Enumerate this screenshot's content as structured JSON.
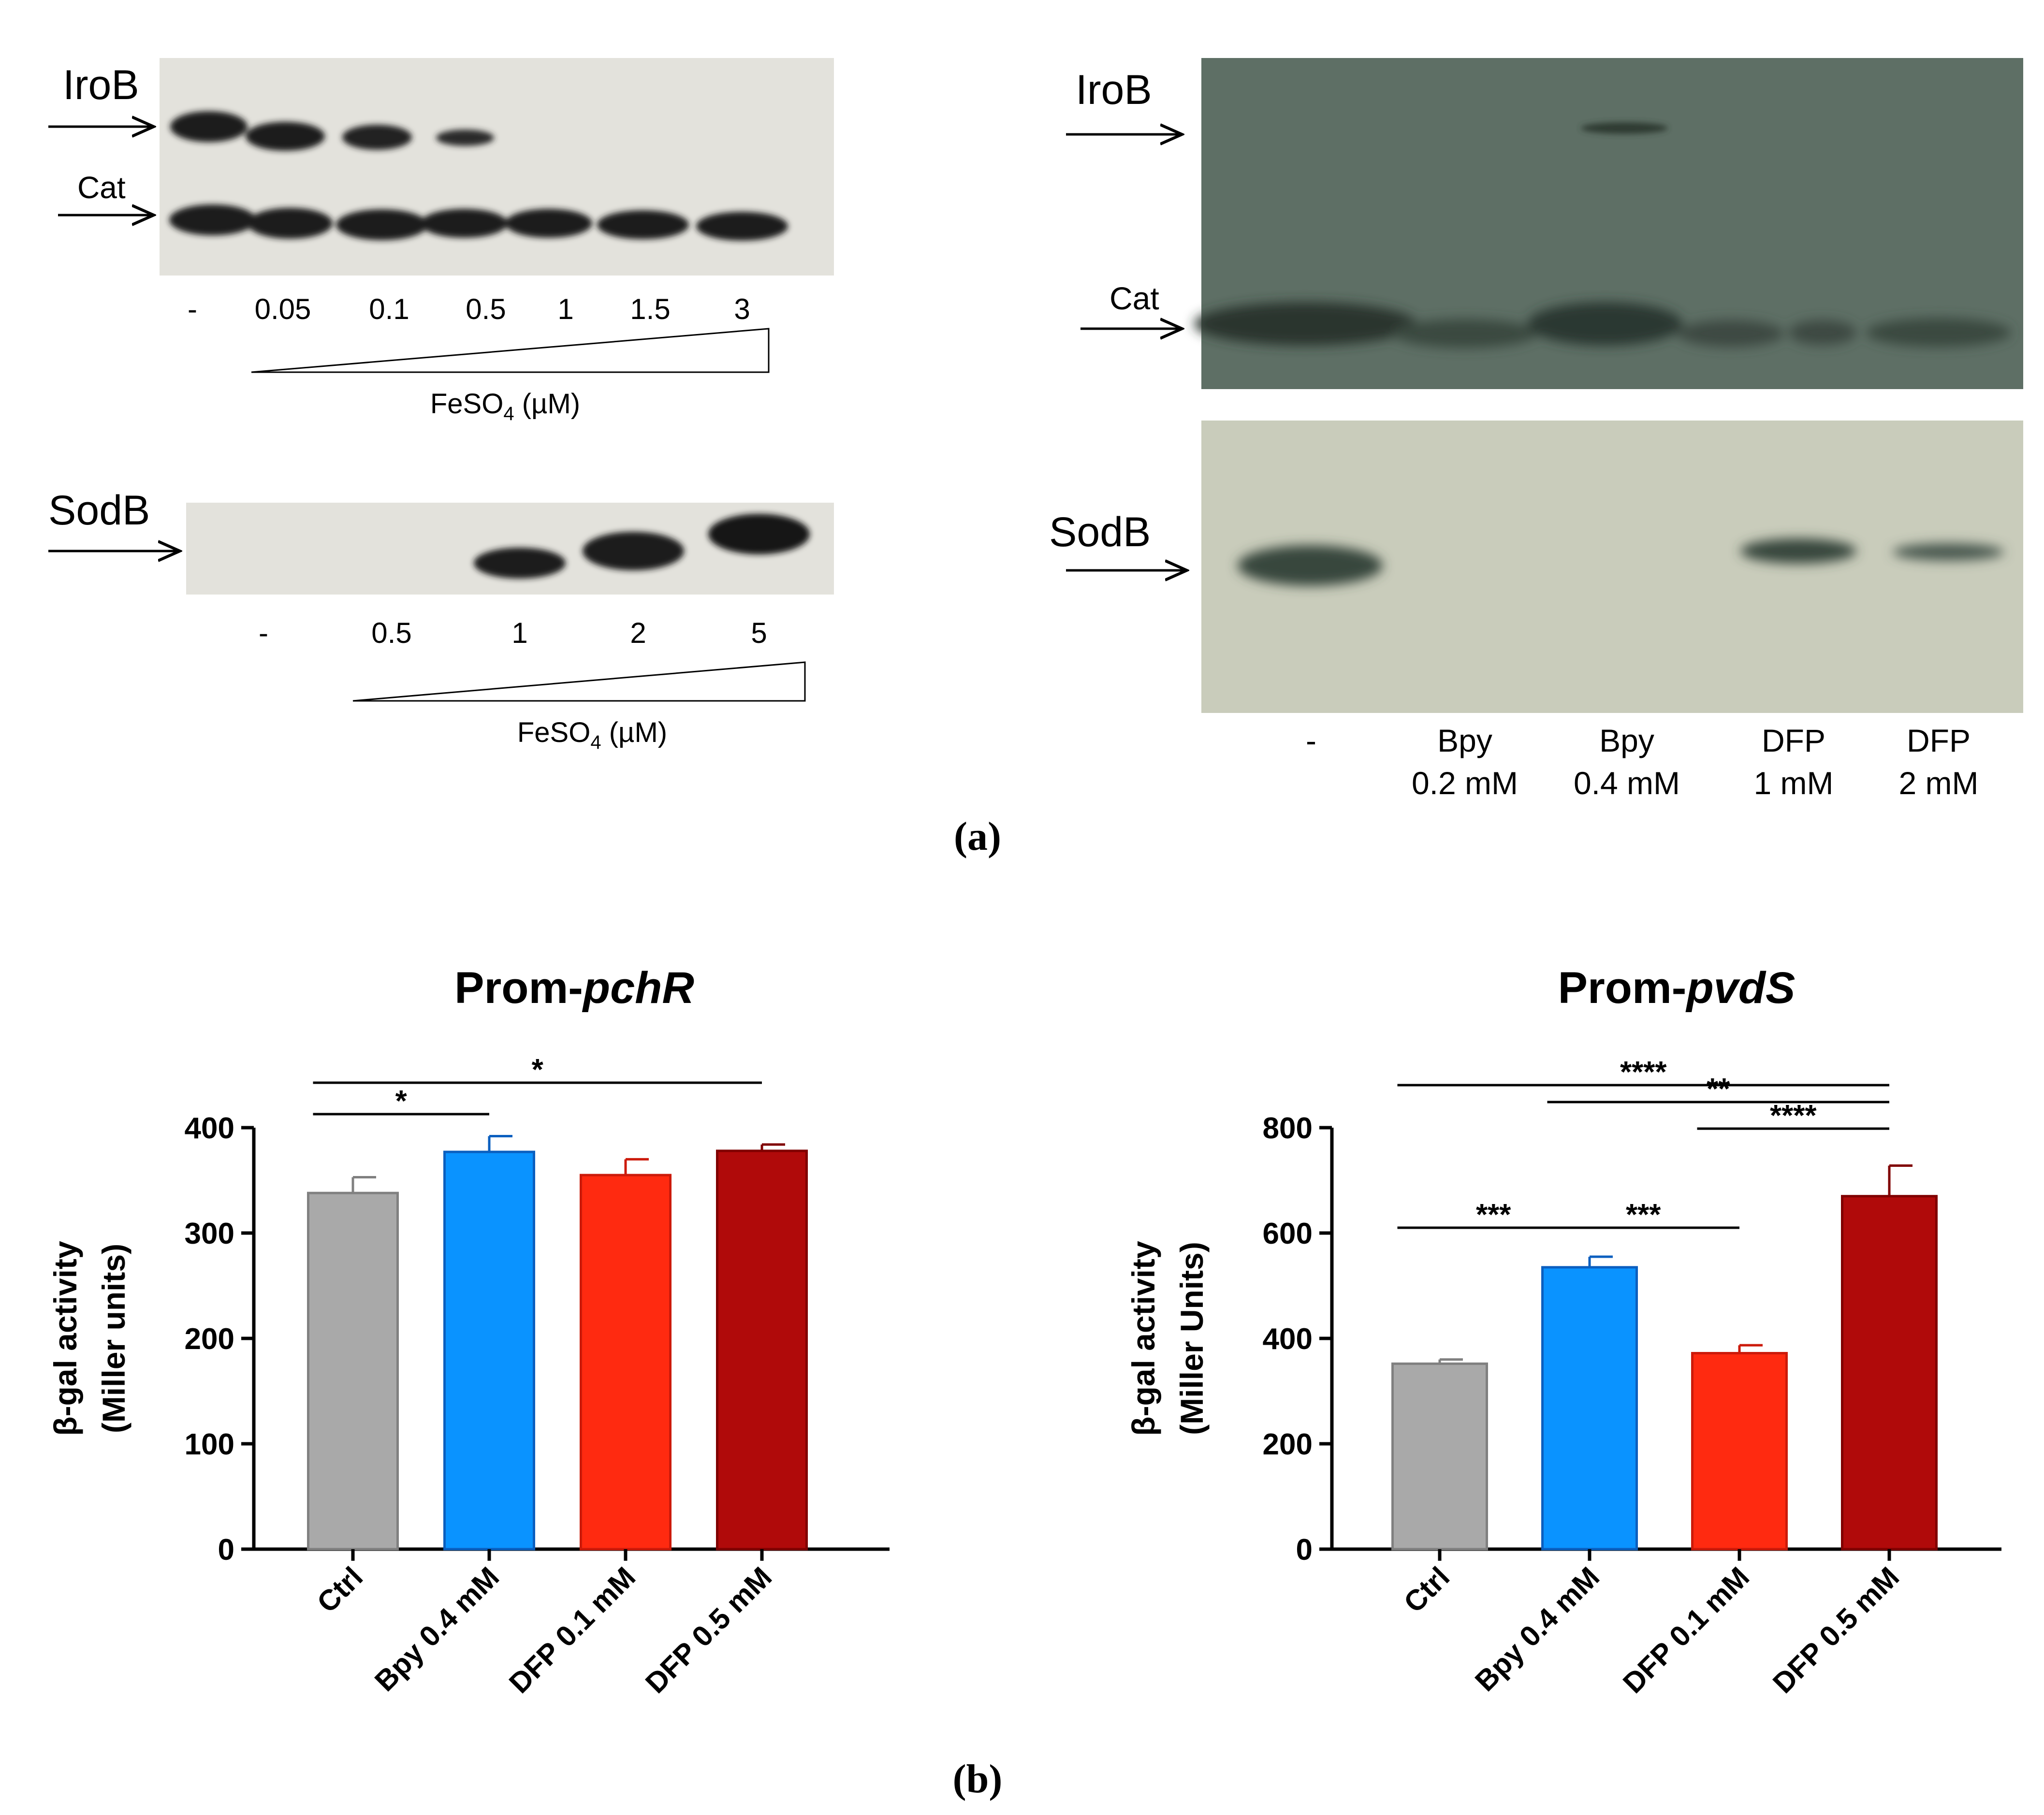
{
  "panel_a": {
    "caption": "(a)",
    "blot_iron_ladder": {
      "iroB_label": "IroB",
      "cat_label": "Cat",
      "lanes": [
        "-",
        "0.05",
        "0.1",
        "0.5",
        "1",
        "1.5",
        "3"
      ],
      "axis_label_main": "FeSO",
      "axis_label_sub": "4",
      "axis_label_unit": " (µM)"
    },
    "blot_sodb_ladder": {
      "sodB_label": "SodB",
      "lanes": [
        "-",
        "0.5",
        "1",
        "2",
        "5"
      ],
      "axis_label_main": "FeSO",
      "axis_label_sub": "4",
      "axis_label_unit": " (µM)"
    },
    "blot_chelator": {
      "iroB_label": "IroB",
      "cat_label": "Cat",
      "sodB_label": "SodB",
      "lanes": [
        {
          "line1": "-",
          "line2": ""
        },
        {
          "line1": "Bpy",
          "line2": "0.2 mM"
        },
        {
          "line1": "Bpy",
          "line2": "0.4 mM"
        },
        {
          "line1": "DFP",
          "line2": "1 mM"
        },
        {
          "line1": "DFP",
          "line2": "2 mM"
        }
      ]
    },
    "colors": {
      "film_gray": "#e3e2dc",
      "band_dark": "#202020",
      "film_green": "#5e6f65",
      "film_pale": "#c9ccbb",
      "band_green": "#38463e"
    }
  },
  "panel_b": {
    "caption": "(b)"
  },
  "chart_data": [
    {
      "type": "bar",
      "title_prefix": "Prom-",
      "title_italic": "pchR",
      "ylabel_line1": "β-gal activity",
      "ylabel_line2": "(Miller units)",
      "categories": [
        "Ctrl",
        "Bpy 0.4 mM",
        "DFP 0.1 mM",
        "DFP 0.5 mM"
      ],
      "values": [
        338,
        377,
        355,
        378
      ],
      "errors": [
        15,
        15,
        15,
        6
      ],
      "colors": [
        "#a9a9a9",
        "#0a93ff",
        "#ff2a10",
        "#b00a0a"
      ],
      "edge_colors": [
        "#808080",
        "#0b5fbf",
        "#cc1a0a",
        "#800000"
      ],
      "ylim": [
        0,
        400
      ],
      "yticks": [
        0,
        100,
        200,
        300,
        400
      ],
      "significance": [
        {
          "from": 0,
          "to": 1,
          "label": "*"
        },
        {
          "from": 0,
          "to": 3,
          "label": "*"
        }
      ]
    },
    {
      "type": "bar",
      "title_prefix": "Prom-",
      "title_italic": "pvdS",
      "ylabel_line1": "β-gal activity",
      "ylabel_line2": "(Miller Units)",
      "categories": [
        "Ctrl",
        "Bpy 0.4 mM",
        "DFP 0.1 mM",
        "DFP 0.5 mM"
      ],
      "values": [
        352,
        535,
        372,
        670
      ],
      "errors": [
        8,
        20,
        15,
        58
      ],
      "colors": [
        "#a9a9a9",
        "#0a93ff",
        "#ff2a10",
        "#b00a0a"
      ],
      "edge_colors": [
        "#808080",
        "#0b5fbf",
        "#cc1a0a",
        "#800000"
      ],
      "ylim": [
        0,
        800
      ],
      "yticks": [
        0,
        200,
        400,
        600,
        800
      ],
      "significance": [
        {
          "from": 0,
          "to": 1,
          "label": "***"
        },
        {
          "from": 1,
          "to": 2,
          "label": "***"
        },
        {
          "from": 2,
          "to": 3,
          "label": "****"
        },
        {
          "from": 1,
          "to": 3,
          "label": "**"
        },
        {
          "from": 0,
          "to": 3,
          "label": "****"
        }
      ]
    }
  ]
}
